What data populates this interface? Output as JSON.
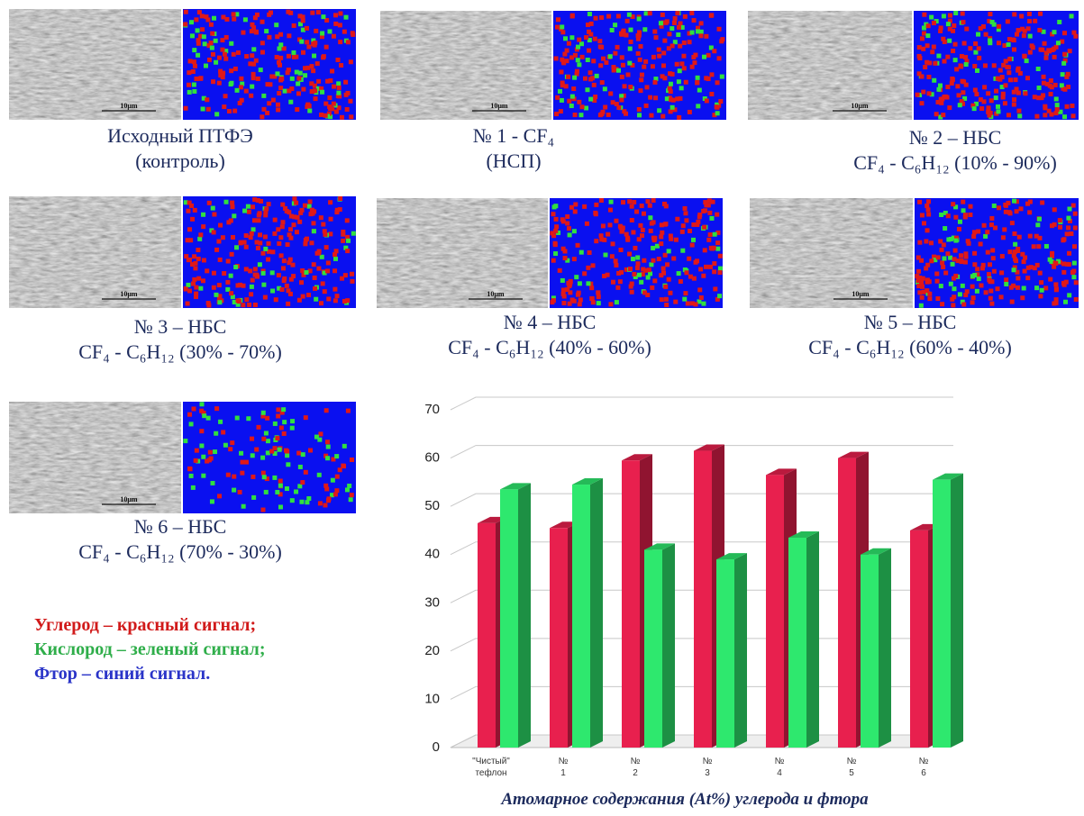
{
  "panels": [
    {
      "caption": [
        "Исходный ПТФЭ",
        "(контроль)"
      ],
      "scale": "10μm"
    },
    {
      "caption": [
        "№ 1 - CF₄",
        "(НСП)"
      ],
      "scale": "10μm"
    },
    {
      "caption": [
        "№ 2 – НБС",
        "CF₄ - C₆H₁₂  (10% - 90%)"
      ],
      "scale": "10μm"
    },
    {
      "caption": [
        "№ 3 – НБС",
        "CF₄ - C₆H₁₂  (30% - 70%)"
      ],
      "scale": "10μm"
    },
    {
      "caption": [
        "№ 4 – НБС",
        "CF₄ - C₆H₁₂  (40% - 60%)"
      ],
      "scale": "10μm"
    },
    {
      "caption": [
        "№ 5 – НБС",
        "CF₄ - C₆H₁₂  (60% - 40%)"
      ],
      "scale": "10μm"
    },
    {
      "caption": [
        "№ 6 – НБС",
        "CF₄ - C₆H₁₂  (70% - 30%)"
      ],
      "scale": "10μm"
    }
  ],
  "legend": [
    {
      "text": "Углерод – красный сигнал;",
      "color": "#d11a1a"
    },
    {
      "text": "Кислород – зеленый сигнал;",
      "color": "#2fae4a"
    },
    {
      "text": "Фтор – синий сигнал.",
      "color": "#2a34c8"
    }
  ],
  "chart_data": {
    "type": "bar3d",
    "title": "Атомарное содержания (At%) углерода и фтора",
    "categories": [
      "\"Чистый\" тефлон",
      "№ 1",
      "№ 2",
      "№ 3",
      "№ 4",
      "№ 5",
      "№ 6"
    ],
    "series": [
      {
        "color": "#e8204e",
        "values": [
          46.5,
          45.5,
          59.5,
          61.5,
          56.5,
          60,
          45
        ]
      },
      {
        "color": "#2ee86e",
        "values": [
          53.5,
          54.5,
          41,
          39,
          43.5,
          40,
          55.5
        ]
      }
    ],
    "ylim": [
      0,
      70
    ],
    "yticks": [
      0,
      10,
      20,
      30,
      40,
      50,
      60,
      70
    ],
    "grid": true
  }
}
